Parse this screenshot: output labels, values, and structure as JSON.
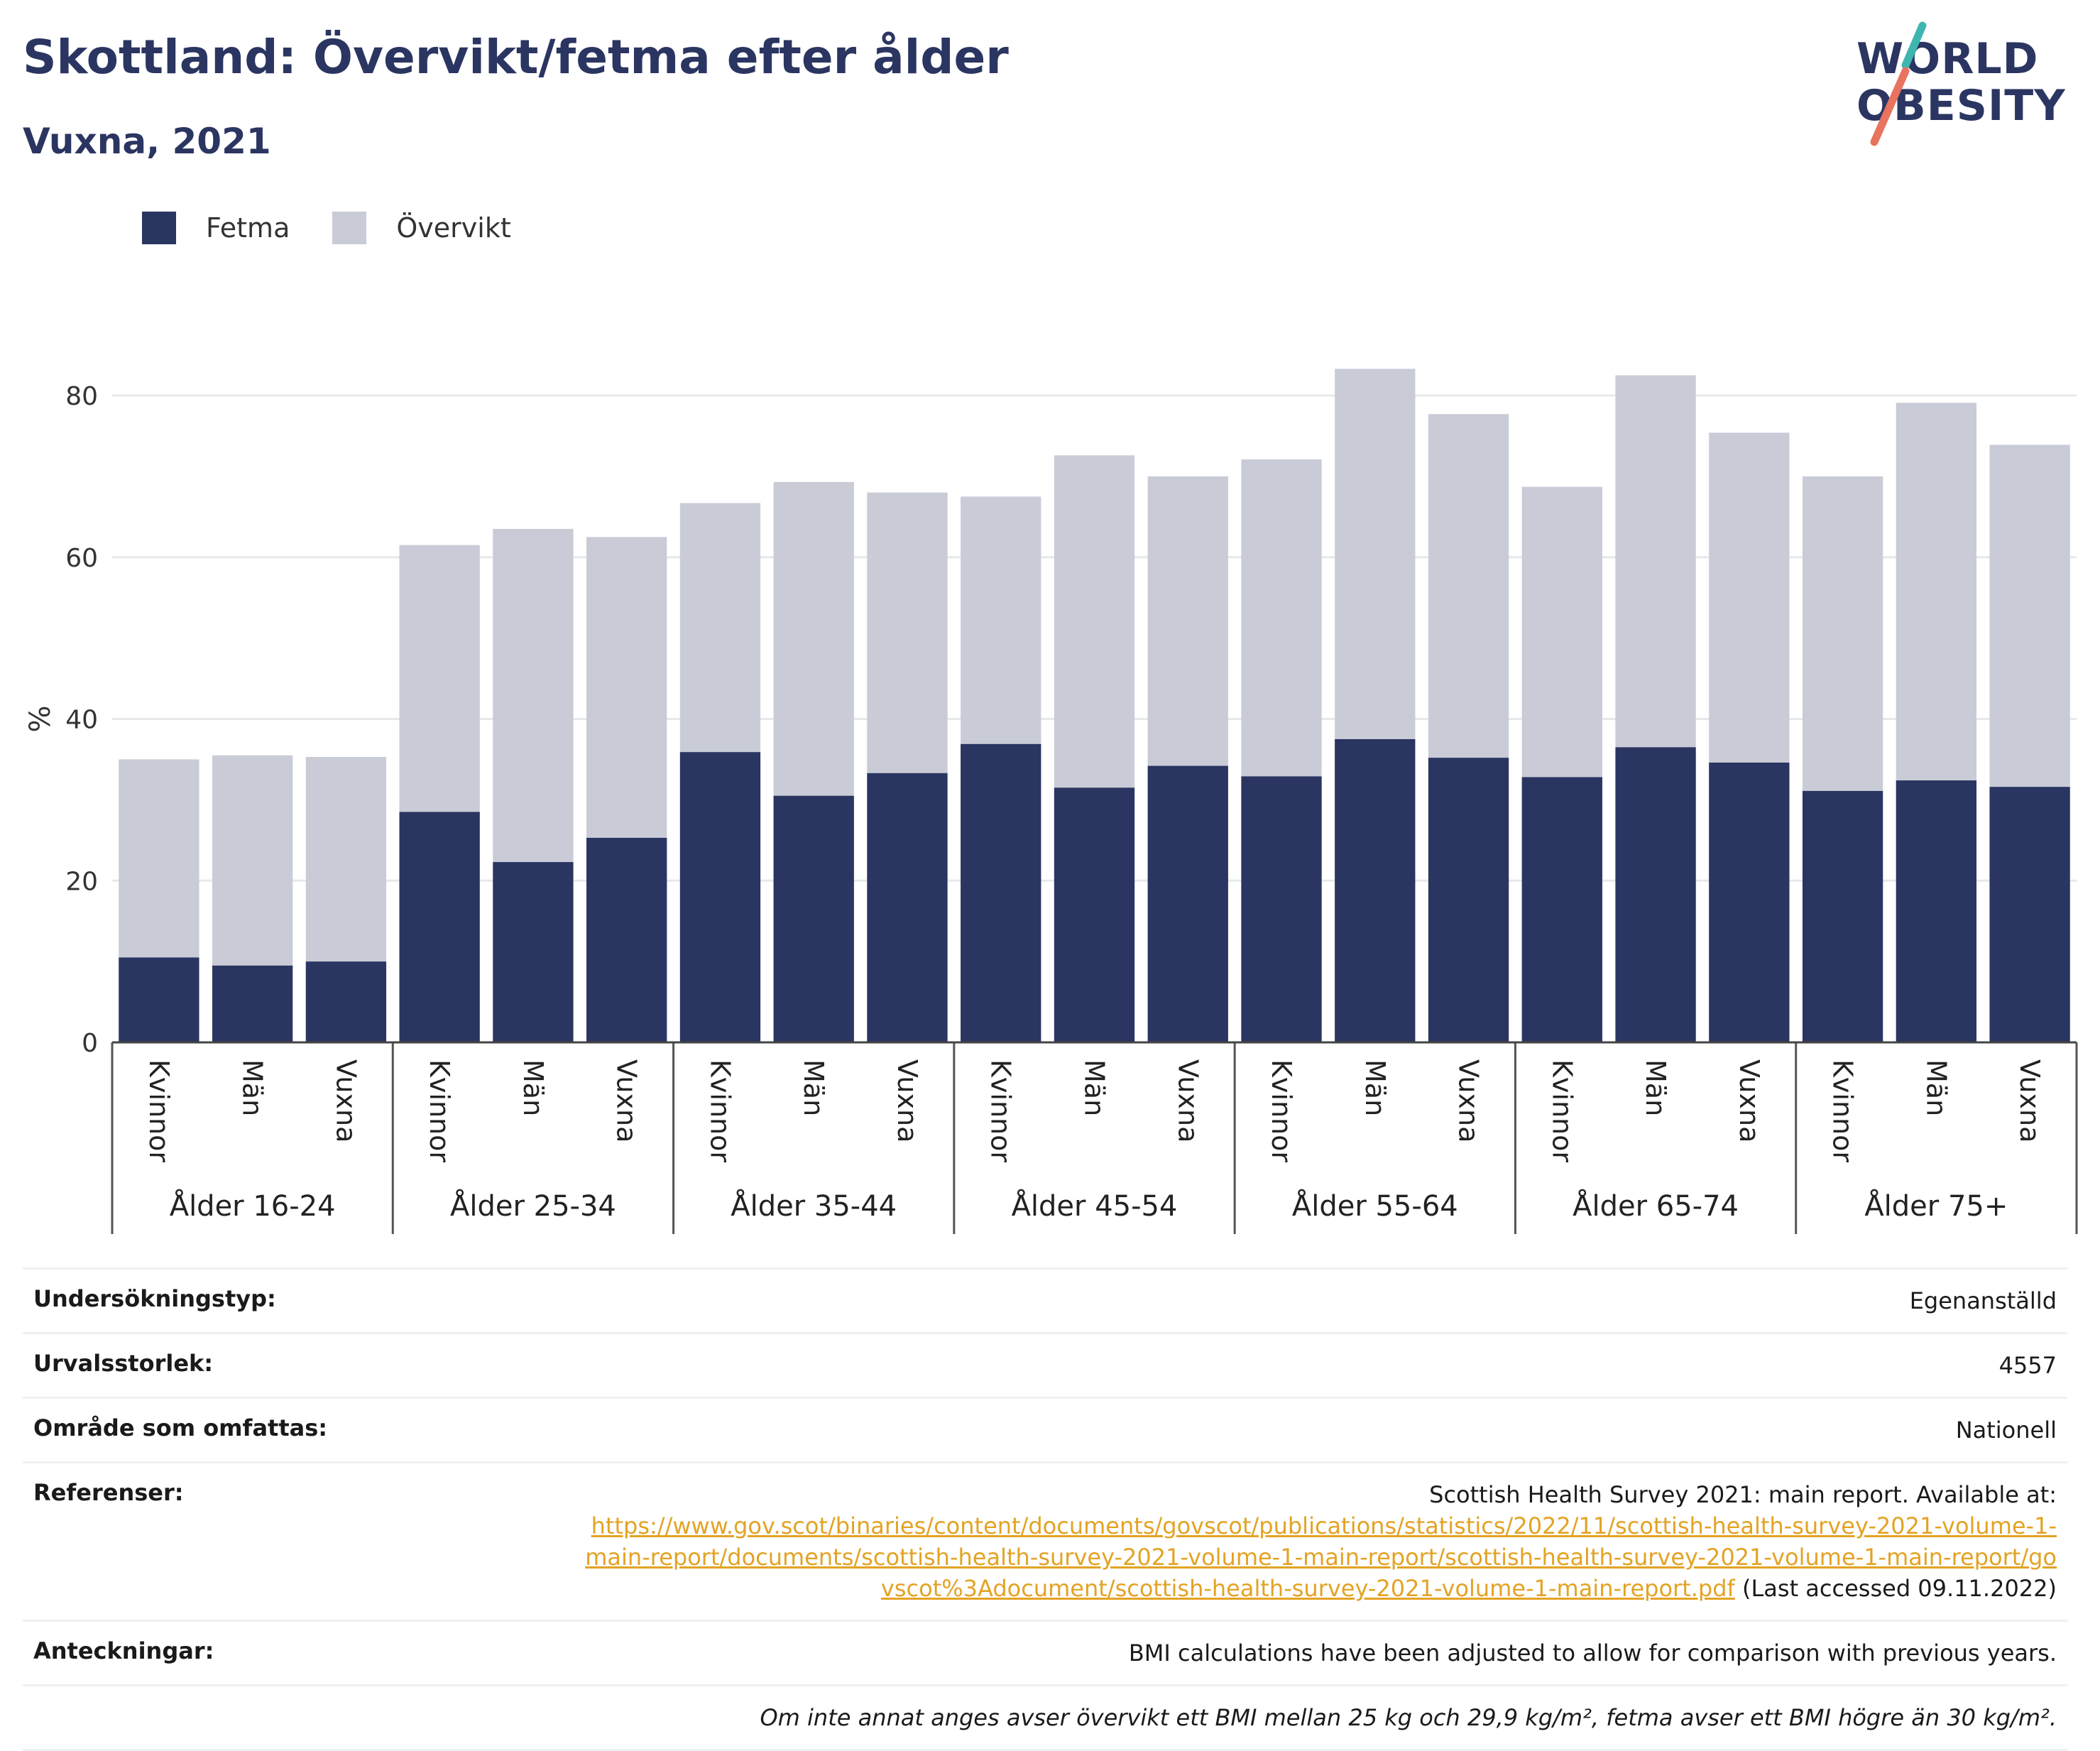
{
  "title": "Skottland: Övervikt/fetma efter ålder",
  "subtitle": "Vuxna, 2021",
  "logo": {
    "line1": "WORLD",
    "line2": "OBESITY"
  },
  "colors": {
    "fetma": "#2a3561",
    "overvikt": "#c9ccd7",
    "title": "#2b3561",
    "grid": "#e6e8eb",
    "link": "#e3a324"
  },
  "legend": [
    {
      "label": "Fetma",
      "color": "#2a3561"
    },
    {
      "label": "Övervikt",
      "color": "#c9ccd7"
    }
  ],
  "chart_data": {
    "type": "bar",
    "stacked": true,
    "ylabel": "%",
    "ylim": [
      0,
      90
    ],
    "yticks": [
      0,
      20,
      40,
      60,
      80
    ],
    "grid": true,
    "legend_position": "top-left",
    "groups": [
      {
        "label": "Ålder 16-24",
        "categories": [
          "Kvinnor",
          "Män",
          "Vuxna"
        ],
        "fetma": [
          10.5,
          9.5,
          10
        ],
        "total": [
          35,
          35.5,
          35.3
        ]
      },
      {
        "label": "Ålder 25-34",
        "categories": [
          "Kvinnor",
          "Män",
          "Vuxna"
        ],
        "fetma": [
          28.5,
          22.3,
          25.3
        ],
        "total": [
          61.5,
          63.5,
          62.5
        ]
      },
      {
        "label": "Ålder 35-44",
        "categories": [
          "Kvinnor",
          "Män",
          "Vuxna"
        ],
        "fetma": [
          35.9,
          30.5,
          33.3
        ],
        "total": [
          66.7,
          69.3,
          68
        ]
      },
      {
        "label": "Ålder 45-54",
        "categories": [
          "Kvinnor",
          "Män",
          "Vuxna"
        ],
        "fetma": [
          36.9,
          31.5,
          34.2
        ],
        "total": [
          67.5,
          72.6,
          70
        ]
      },
      {
        "label": "Ålder 55-64",
        "categories": [
          "Kvinnor",
          "Män",
          "Vuxna"
        ],
        "fetma": [
          32.9,
          37.5,
          35.2
        ],
        "total": [
          72.1,
          83.3,
          77.7
        ]
      },
      {
        "label": "Ålder 65-74",
        "categories": [
          "Kvinnor",
          "Män",
          "Vuxna"
        ],
        "fetma": [
          32.8,
          36.5,
          34.6
        ],
        "total": [
          68.7,
          82.5,
          75.4
        ]
      },
      {
        "label": "Ålder 75+",
        "categories": [
          "Kvinnor",
          "Män",
          "Vuxna"
        ],
        "fetma": [
          31.1,
          32.4,
          31.6
        ],
        "total": [
          70,
          79.1,
          73.9
        ]
      }
    ],
    "series": [
      {
        "name": "Fetma"
      },
      {
        "name": "Övervikt"
      }
    ]
  },
  "info": {
    "survey_type_label": "Undersökningstyp:",
    "survey_type_value": "Egenanställd",
    "sample_size_label": "Urvalsstorlek:",
    "sample_size_value": "4557",
    "area_label": "Område som omfattas:",
    "area_value": "Nationell",
    "references_label": "Referenser:",
    "references_text": "Scottish Health Survey 2021: main report. Available at:",
    "references_url": "https://www.gov.scot/binaries/content/documents/govscot/publications/statistics/2022/11/scottish-health-survey-2021-volume-1-main-report/documents/scottish-health-survey-2021-volume-1-main-report/scottish-health-survey-2021-volume-1-main-report/govscot%3Adocument/scottish-health-survey-2021-volume-1-main-report.pdf",
    "references_accessed": "(Last accessed 09.11.2022)",
    "notes_label": "Anteckningar:",
    "notes_value": "BMI calculations have been adjusted to allow for comparison with previous years.",
    "definition_note": "Om inte annat anges avser övervikt ett BMI mellan 25 kg och 29,9 kg/m², fetma avser ett BMI högre än 30 kg/m²."
  }
}
